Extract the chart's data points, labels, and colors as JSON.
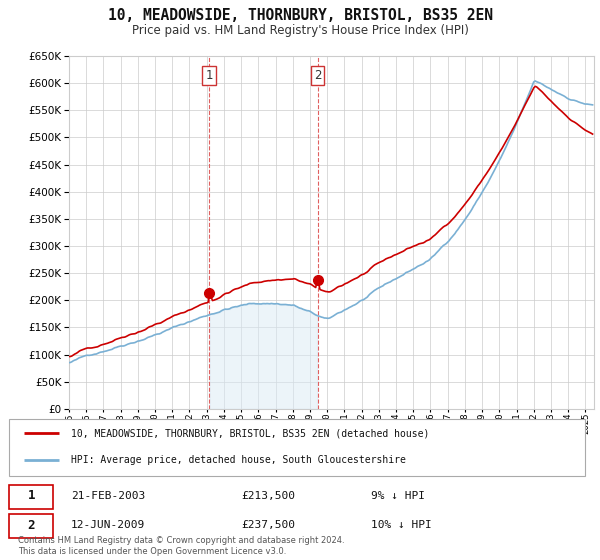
{
  "title": "10, MEADOWSIDE, THORNBURY, BRISTOL, BS35 2EN",
  "subtitle": "Price paid vs. HM Land Registry's House Price Index (HPI)",
  "legend_line1": "10, MEADOWSIDE, THORNBURY, BRISTOL, BS35 2EN (detached house)",
  "legend_line2": "HPI: Average price, detached house, South Gloucestershire",
  "transaction1_label": "1",
  "transaction1_date": "21-FEB-2003",
  "transaction1_price": "£213,500",
  "transaction1_hpi": "9% ↓ HPI",
  "transaction2_label": "2",
  "transaction2_date": "12-JUN-2009",
  "transaction2_price": "£237,500",
  "transaction2_hpi": "10% ↓ HPI",
  "footer": "Contains HM Land Registry data © Crown copyright and database right 2024.\nThis data is licensed under the Open Government Licence v3.0.",
  "red_color": "#cc0000",
  "blue_color": "#7ab0d4",
  "blue_fill": "#daeaf5",
  "marker_color": "#cc0000",
  "grid_color": "#cccccc",
  "background_color": "#ffffff",
  "vline_color": "#e06060",
  "transaction1_x": 2003.13,
  "transaction1_y": 213500,
  "transaction2_x": 2009.45,
  "transaction2_y": 237500,
  "ylim": [
    0,
    650000
  ],
  "xlim_start": 1995.0,
  "xlim_end": 2025.5
}
